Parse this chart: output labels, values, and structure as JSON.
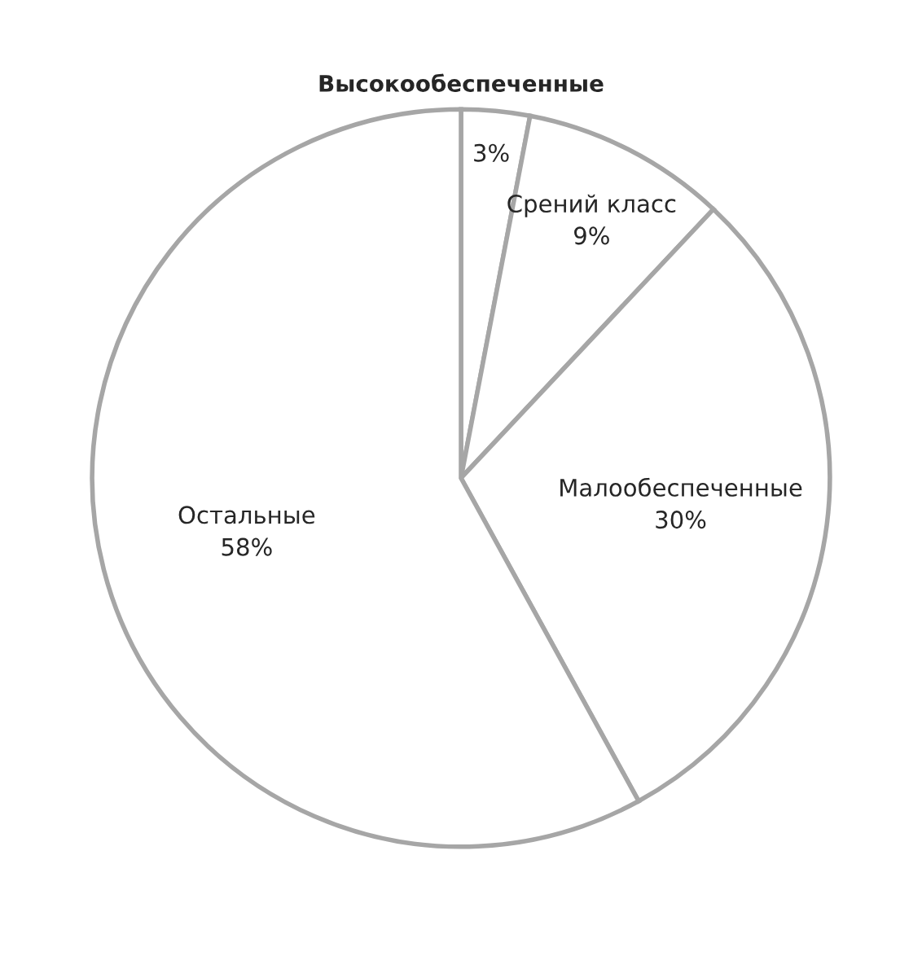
{
  "chart_data": {
    "type": "pie",
    "categories": [
      "Высокообеспеченные",
      "Срений класс",
      "Малообеспеченные",
      "Остальные"
    ],
    "values": [
      3,
      9,
      30,
      58
    ],
    "value_labels": [
      "3%",
      "9%",
      "30%",
      "58%"
    ],
    "colors": [
      "#ffffff",
      "#ffffff",
      "#ffffff",
      "#ffffff"
    ],
    "legend": false
  }
}
